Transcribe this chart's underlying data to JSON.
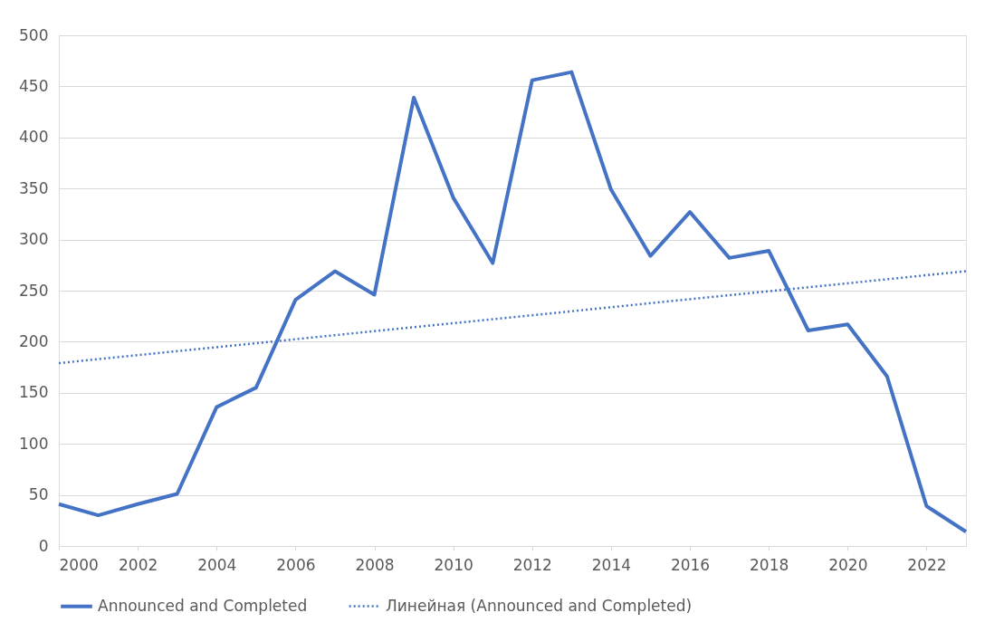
{
  "chart_data": {
    "type": "line",
    "x": [
      2000,
      2001,
      2002,
      2003,
      2004,
      2005,
      2006,
      2007,
      2008,
      2009,
      2010,
      2011,
      2012,
      2013,
      2014,
      2015,
      2016,
      2017,
      2018,
      2019,
      2020,
      2021,
      2022,
      2023
    ],
    "series": [
      {
        "name": "Announced and Completed",
        "color": "#4472c4",
        "line_style": "solid",
        "values": [
          41,
          30,
          41,
          51,
          136,
          155,
          241,
          269,
          246,
          439,
          341,
          277,
          456,
          464,
          349,
          284,
          327,
          282,
          289,
          211,
          217,
          166,
          39,
          14
        ]
      },
      {
        "name": "Линейная (Announced and Completed)",
        "color": "#4472c4",
        "line_style": "dotted",
        "x": [
          2000,
          2023
        ],
        "values": [
          179,
          269
        ]
      }
    ],
    "xlim": [
      2000,
      2023
    ],
    "xticks": [
      2000,
      2002,
      2004,
      2006,
      2008,
      2010,
      2012,
      2014,
      2016,
      2018,
      2020,
      2022
    ],
    "ylim": [
      0,
      500
    ],
    "yticks": [
      0,
      50,
      100,
      150,
      200,
      250,
      300,
      350,
      400,
      450,
      500
    ],
    "grid": "y",
    "legend": "bottom",
    "marker": "none"
  }
}
